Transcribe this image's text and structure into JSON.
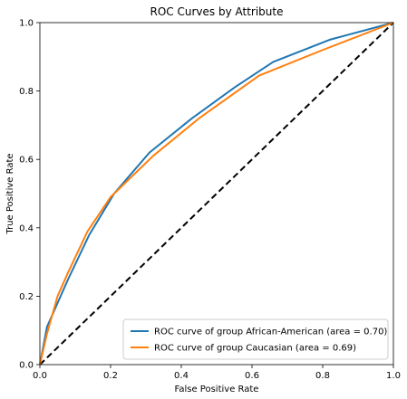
{
  "chart_data": {
    "type": "line",
    "title": "ROC Curves by Attribute",
    "xlabel": "False Positive Rate",
    "ylabel": "True Positive Rate",
    "xlim": [
      0,
      1
    ],
    "ylim": [
      0,
      1
    ],
    "xticks": [
      "0.0",
      "0.2",
      "0.4",
      "0.6",
      "0.8",
      "1.0"
    ],
    "yticks": [
      "0.0",
      "0.2",
      "0.4",
      "0.6",
      "0.8",
      "1.0"
    ],
    "grid": false,
    "legend_position": "lower-right",
    "series": [
      {
        "name": "ROC curve of group African-American (area = 0.70)",
        "color": "#1f77b4",
        "x": [
          0.0,
          0.02,
          0.05,
          0.08,
          0.14,
          0.21,
          0.31,
          0.43,
          0.55,
          0.66,
          0.82,
          1.0
        ],
        "y": [
          0.0,
          0.11,
          0.18,
          0.25,
          0.38,
          0.5,
          0.62,
          0.72,
          0.81,
          0.885,
          0.95,
          1.0
        ]
      },
      {
        "name": "ROC curve of group Caucasian (area = 0.69)",
        "color": "#ff7f0e",
        "x": [
          0.0,
          0.02,
          0.05,
          0.08,
          0.135,
          0.2,
          0.32,
          0.45,
          0.62,
          0.8,
          1.0
        ],
        "y": [
          0.0,
          0.09,
          0.2,
          0.27,
          0.39,
          0.49,
          0.61,
          0.72,
          0.845,
          0.92,
          1.0
        ]
      }
    ],
    "reference_line": {
      "x": [
        0,
        1
      ],
      "y": [
        0,
        1
      ],
      "color": "#000000",
      "style": "dashed"
    }
  }
}
